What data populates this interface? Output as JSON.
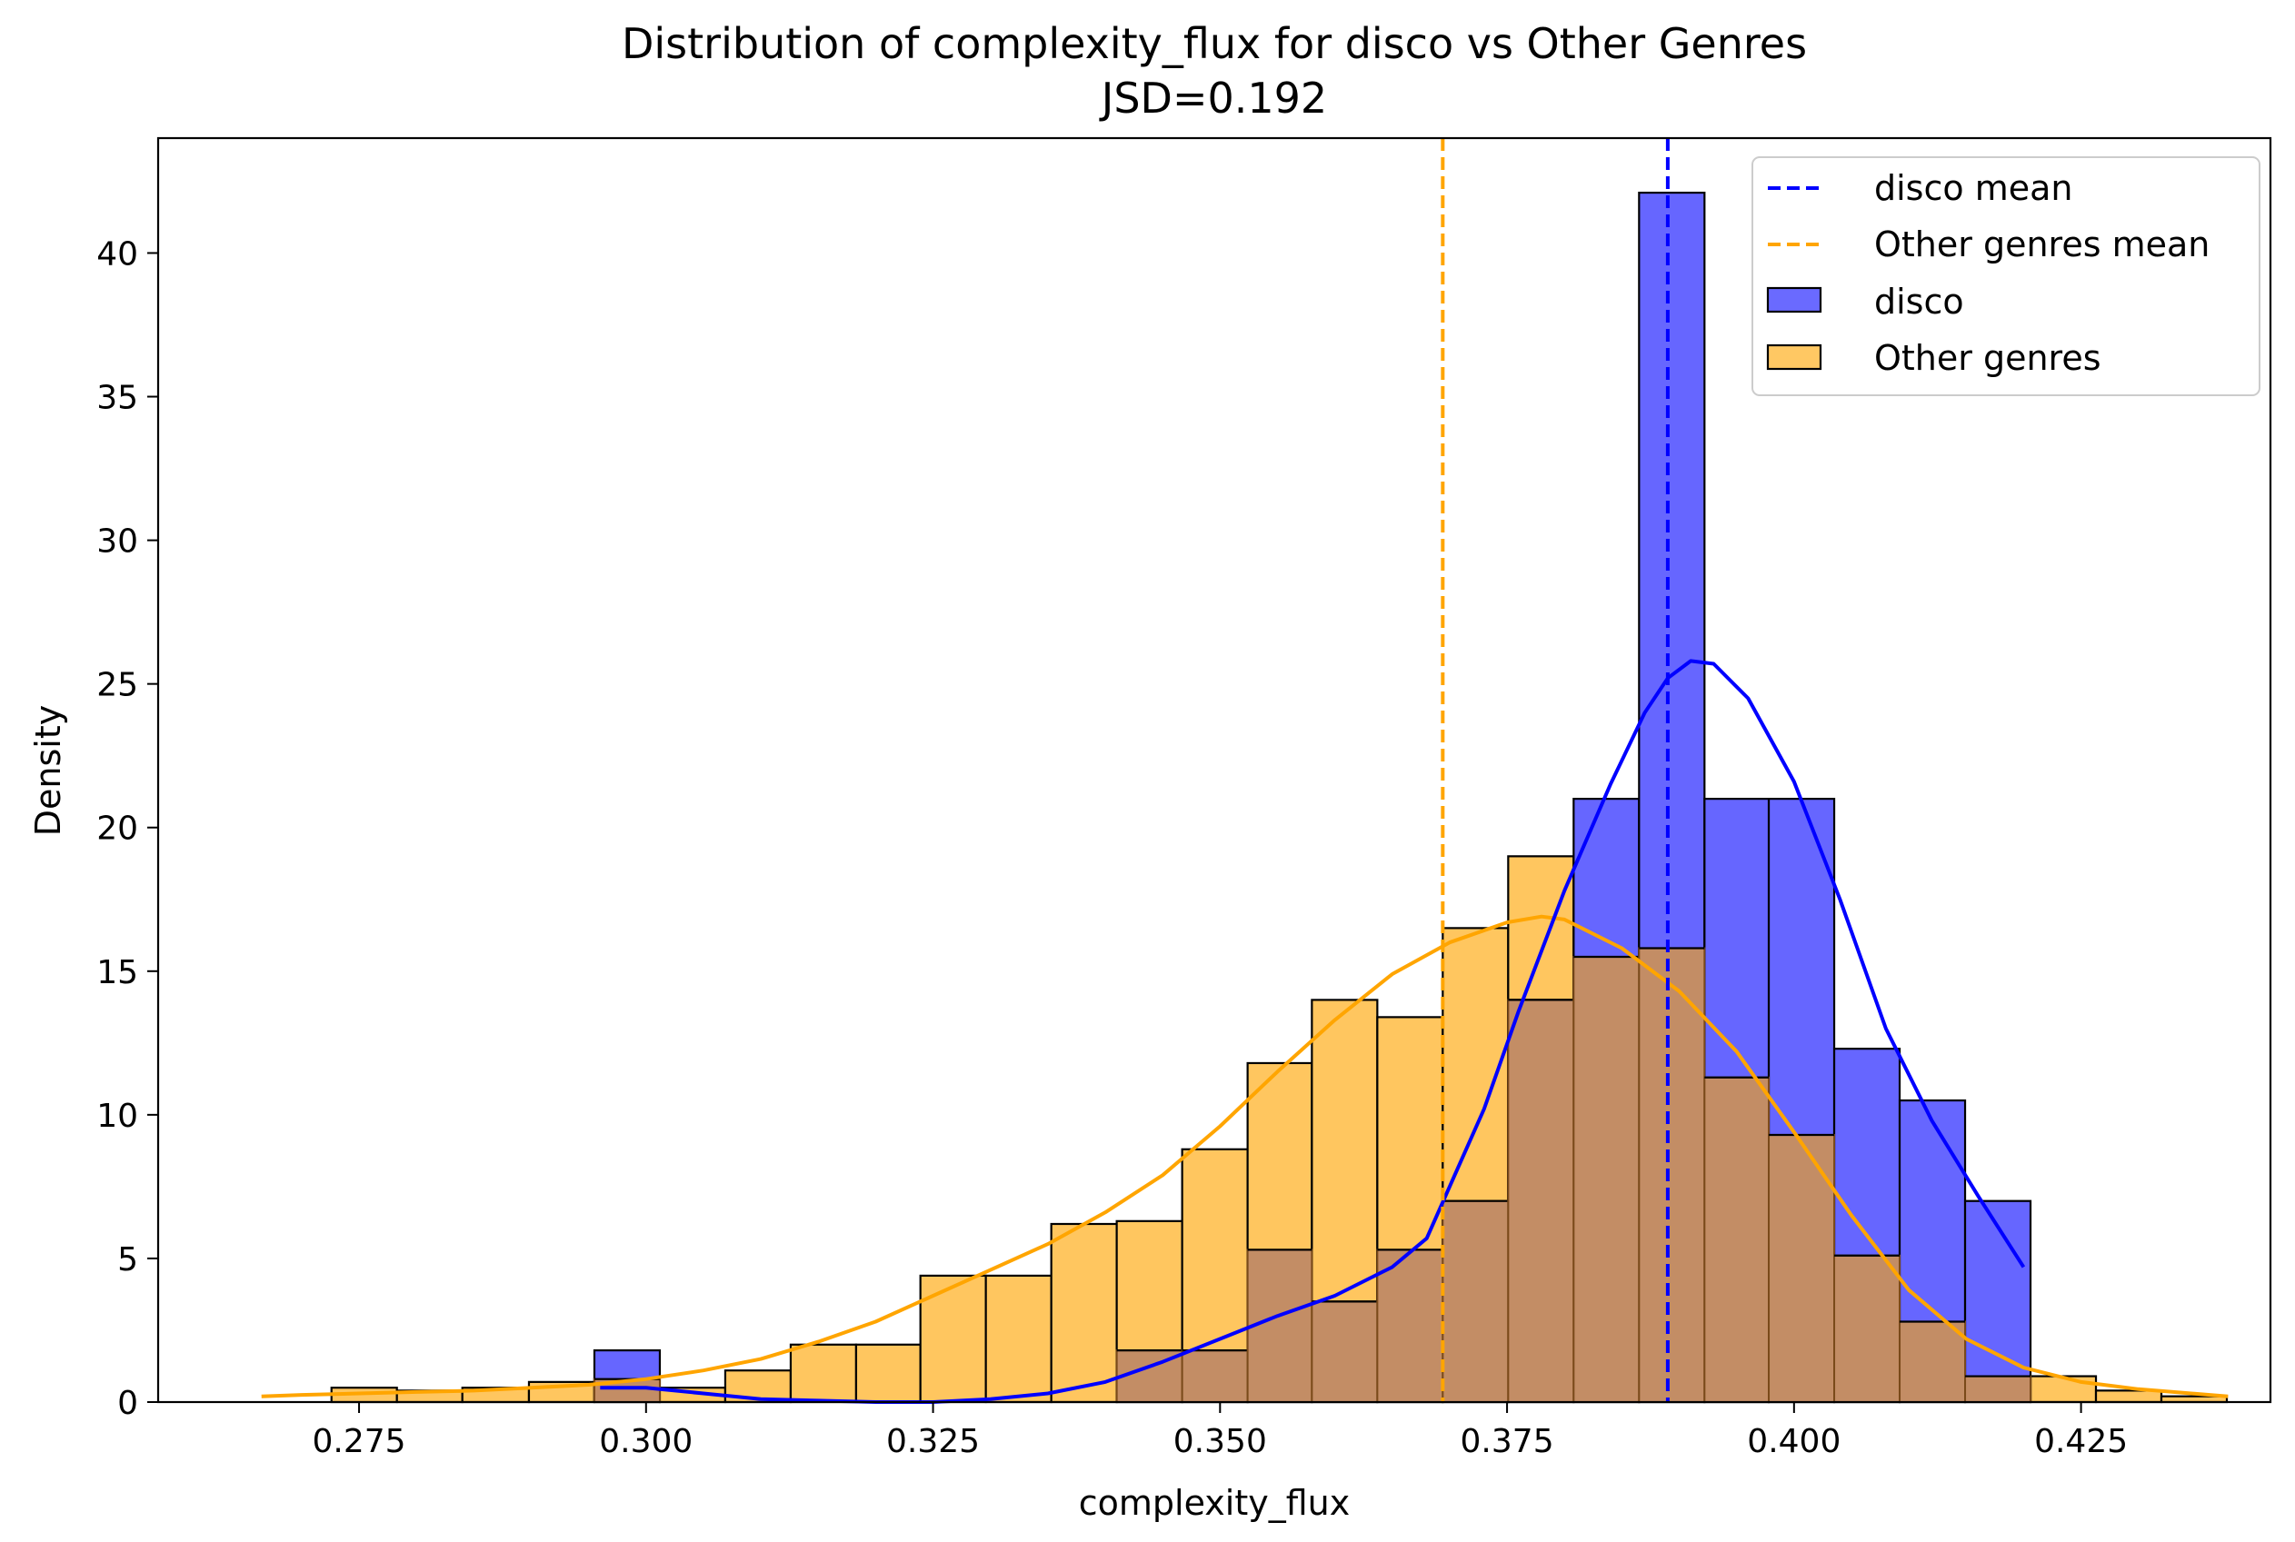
{
  "chart_data": {
    "type": "histogram",
    "title": "Distribution of complexity_flux for disco vs Other Genres",
    "subtitle": "JSD=0.192",
    "xlabel": "complexity_flux",
    "ylabel": "Density",
    "xlim": [
      0.2575,
      0.4415
    ],
    "ylim": [
      0,
      44
    ],
    "xticks": [
      0.275,
      0.3,
      0.325,
      0.35,
      0.375,
      0.4,
      0.425
    ],
    "xtick_labels": [
      "0.275",
      "0.300",
      "0.325",
      "0.350",
      "0.375",
      "0.400",
      "0.425"
    ],
    "yticks": [
      0,
      5,
      10,
      15,
      20,
      25,
      30,
      35,
      40
    ],
    "ytick_labels": [
      "0",
      "5",
      "10",
      "15",
      "20",
      "25",
      "30",
      "35",
      "40"
    ],
    "legend_position": "top-right",
    "legend": [
      {
        "label": "disco mean",
        "kind": "dashed-line",
        "color": "#0000ff"
      },
      {
        "label": "Other genres mean",
        "kind": "dashed-line",
        "color": "#ffa500"
      },
      {
        "label": "disco",
        "kind": "patch",
        "color": "#6a6aff"
      },
      {
        "label": "Other genres",
        "kind": "patch",
        "color": "#ffc863"
      }
    ],
    "colors": {
      "disco_bar": "#6666ff",
      "other_bar": "#ffc65f",
      "overlap_bar": "#c38d65",
      "disco_line": "#0000ff",
      "other_line": "#ffa500"
    },
    "means": {
      "disco": 0.389,
      "other": 0.3694
    },
    "series": [
      {
        "name": "disco",
        "bins": [
          {
            "x0": 0.2955,
            "x1": 0.3012,
            "density": 1.8
          },
          {
            "x0": 0.341,
            "x1": 0.3467,
            "density": 1.8
          },
          {
            "x0": 0.3467,
            "x1": 0.3524,
            "density": 1.8
          },
          {
            "x0": 0.3524,
            "x1": 0.358,
            "density": 5.3
          },
          {
            "x0": 0.358,
            "x1": 0.3637,
            "density": 3.5
          },
          {
            "x0": 0.3637,
            "x1": 0.3694,
            "density": 5.3
          },
          {
            "x0": 0.3694,
            "x1": 0.3751,
            "density": 7.0
          },
          {
            "x0": 0.3751,
            "x1": 0.3808,
            "density": 14.0
          },
          {
            "x0": 0.3808,
            "x1": 0.3865,
            "density": 21.0
          },
          {
            "x0": 0.3865,
            "x1": 0.3922,
            "density": 42.1
          },
          {
            "x0": 0.3922,
            "x1": 0.3978,
            "density": 21.0
          },
          {
            "x0": 0.3978,
            "x1": 0.4035,
            "density": 21.0
          },
          {
            "x0": 0.4035,
            "x1": 0.4092,
            "density": 12.3
          },
          {
            "x0": 0.4092,
            "x1": 0.4149,
            "density": 10.5
          },
          {
            "x0": 0.4149,
            "x1": 0.4206,
            "density": 7.0
          }
        ],
        "kde": [
          [
            0.296,
            0.5
          ],
          [
            0.3,
            0.5
          ],
          [
            0.305,
            0.3
          ],
          [
            0.31,
            0.1
          ],
          [
            0.315,
            0.05
          ],
          [
            0.32,
            0.0
          ],
          [
            0.325,
            0.0
          ],
          [
            0.33,
            0.1
          ],
          [
            0.335,
            0.3
          ],
          [
            0.34,
            0.7
          ],
          [
            0.345,
            1.4
          ],
          [
            0.35,
            2.2
          ],
          [
            0.355,
            3.0
          ],
          [
            0.36,
            3.7
          ],
          [
            0.365,
            4.7
          ],
          [
            0.368,
            5.7
          ],
          [
            0.37,
            7.5
          ],
          [
            0.373,
            10.2
          ],
          [
            0.376,
            13.6
          ],
          [
            0.38,
            17.8
          ],
          [
            0.384,
            21.5
          ],
          [
            0.387,
            24.0
          ],
          [
            0.389,
            25.2
          ],
          [
            0.391,
            25.8
          ],
          [
            0.393,
            25.7
          ],
          [
            0.396,
            24.5
          ],
          [
            0.4,
            21.6
          ],
          [
            0.404,
            17.5
          ],
          [
            0.408,
            13.0
          ],
          [
            0.412,
            9.8
          ],
          [
            0.416,
            7.2
          ],
          [
            0.42,
            4.7
          ]
        ]
      },
      {
        "name": "Other genres",
        "bins": [
          {
            "x0": 0.2726,
            "x1": 0.2783,
            "density": 0.5
          },
          {
            "x0": 0.2783,
            "x1": 0.284,
            "density": 0.4
          },
          {
            "x0": 0.284,
            "x1": 0.2898,
            "density": 0.5
          },
          {
            "x0": 0.2898,
            "x1": 0.2955,
            "density": 0.7
          },
          {
            "x0": 0.2955,
            "x1": 0.3012,
            "density": 0.8
          },
          {
            "x0": 0.3012,
            "x1": 0.3069,
            "density": 0.5
          },
          {
            "x0": 0.3069,
            "x1": 0.3126,
            "density": 1.1
          },
          {
            "x0": 0.3126,
            "x1": 0.3183,
            "density": 2.0
          },
          {
            "x0": 0.3183,
            "x1": 0.3239,
            "density": 2.0
          },
          {
            "x0": 0.3239,
            "x1": 0.3296,
            "density": 4.4
          },
          {
            "x0": 0.3296,
            "x1": 0.3353,
            "density": 4.4
          },
          {
            "x0": 0.3353,
            "x1": 0.341,
            "density": 6.2
          },
          {
            "x0": 0.341,
            "x1": 0.3467,
            "density": 6.3
          },
          {
            "x0": 0.3467,
            "x1": 0.3524,
            "density": 8.8
          },
          {
            "x0": 0.3524,
            "x1": 0.358,
            "density": 11.8
          },
          {
            "x0": 0.358,
            "x1": 0.3637,
            "density": 14.0
          },
          {
            "x0": 0.3637,
            "x1": 0.3694,
            "density": 13.4
          },
          {
            "x0": 0.3694,
            "x1": 0.3751,
            "density": 16.5
          },
          {
            "x0": 0.3751,
            "x1": 0.3808,
            "density": 19.0
          },
          {
            "x0": 0.3808,
            "x1": 0.3865,
            "density": 15.5
          },
          {
            "x0": 0.3865,
            "x1": 0.3922,
            "density": 15.8
          },
          {
            "x0": 0.3922,
            "x1": 0.3978,
            "density": 11.3
          },
          {
            "x0": 0.3978,
            "x1": 0.4035,
            "density": 9.3
          },
          {
            "x0": 0.4035,
            "x1": 0.4092,
            "density": 5.1
          },
          {
            "x0": 0.4092,
            "x1": 0.4149,
            "density": 2.8
          },
          {
            "x0": 0.4149,
            "x1": 0.4206,
            "density": 0.9
          },
          {
            "x0": 0.4206,
            "x1": 0.4263,
            "density": 0.9
          },
          {
            "x0": 0.4263,
            "x1": 0.432,
            "density": 0.4
          },
          {
            "x0": 0.432,
            "x1": 0.4377,
            "density": 0.2
          }
        ],
        "kde": [
          [
            0.2665,
            0.2
          ],
          [
            0.27,
            0.25
          ],
          [
            0.275,
            0.3
          ],
          [
            0.28,
            0.35
          ],
          [
            0.285,
            0.4
          ],
          [
            0.29,
            0.5
          ],
          [
            0.295,
            0.6
          ],
          [
            0.3,
            0.8
          ],
          [
            0.305,
            1.1
          ],
          [
            0.31,
            1.5
          ],
          [
            0.315,
            2.1
          ],
          [
            0.32,
            2.8
          ],
          [
            0.325,
            3.7
          ],
          [
            0.33,
            4.6
          ],
          [
            0.335,
            5.5
          ],
          [
            0.34,
            6.6
          ],
          [
            0.345,
            7.9
          ],
          [
            0.35,
            9.6
          ],
          [
            0.355,
            11.5
          ],
          [
            0.36,
            13.3
          ],
          [
            0.365,
            14.9
          ],
          [
            0.37,
            16.0
          ],
          [
            0.375,
            16.7
          ],
          [
            0.378,
            16.9
          ],
          [
            0.38,
            16.8
          ],
          [
            0.385,
            15.8
          ],
          [
            0.39,
            14.3
          ],
          [
            0.395,
            12.2
          ],
          [
            0.4,
            9.4
          ],
          [
            0.405,
            6.5
          ],
          [
            0.41,
            3.9
          ],
          [
            0.415,
            2.2
          ],
          [
            0.42,
            1.2
          ],
          [
            0.425,
            0.7
          ],
          [
            0.43,
            0.45
          ],
          [
            0.4378,
            0.2
          ]
        ]
      }
    ]
  }
}
